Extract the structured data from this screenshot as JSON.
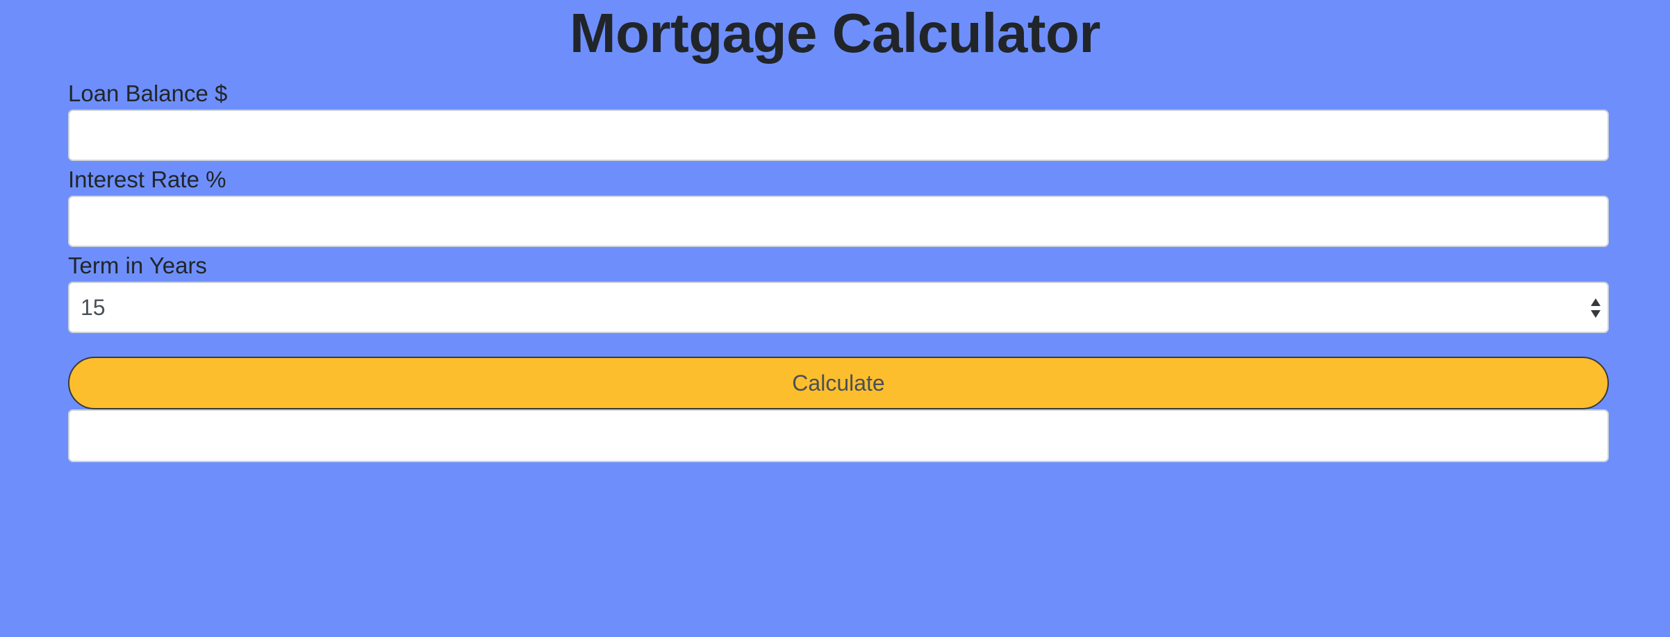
{
  "page": {
    "title": "Mortgage Calculator",
    "background_color": "#6e8ffb"
  },
  "form": {
    "loan_balance": {
      "label": "Loan Balance $",
      "value": "",
      "placeholder": ""
    },
    "interest_rate": {
      "label": "Interest Rate %",
      "value": "",
      "placeholder": ""
    },
    "term": {
      "label": "Term in Years",
      "selected": "15",
      "icon": "select-arrows-icon"
    },
    "calculate_label": "Calculate",
    "calculate_color": "#fdbe2e",
    "result": ""
  }
}
